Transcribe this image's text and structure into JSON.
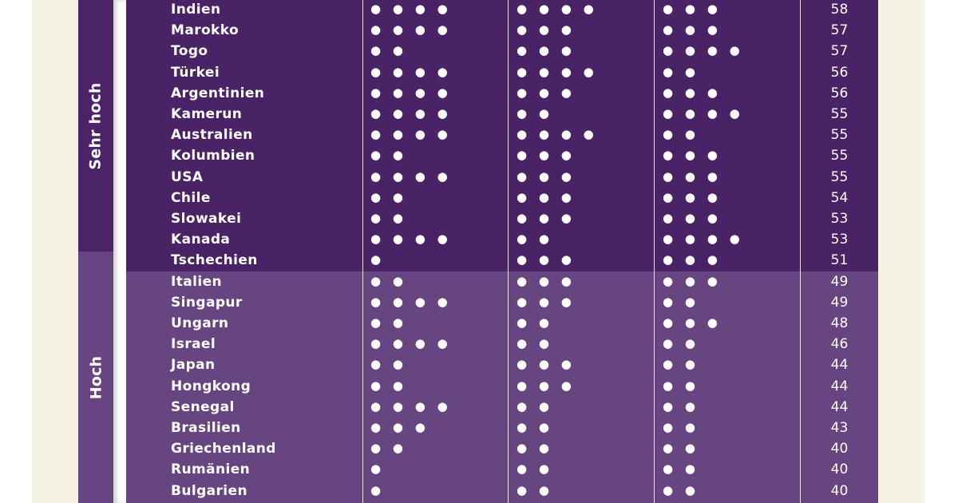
{
  "groups": {
    "very_high": "Sehr hoch",
    "high": "Hoch"
  },
  "rows": [
    {
      "country": "Indien",
      "d1": "● ● ● ●",
      "d2": "● ● ● ●",
      "d3": "● ● ●",
      "score": "58",
      "band": "very_high"
    },
    {
      "country": "Marokko",
      "d1": "● ● ● ●",
      "d2": "● ● ●",
      "d3": "● ● ●",
      "score": "57",
      "band": "very_high"
    },
    {
      "country": "Togo",
      "d1": "● ●",
      "d2": "● ● ●",
      "d3": "● ● ● ●",
      "score": "57",
      "band": "very_high"
    },
    {
      "country": "Türkei",
      "d1": "● ● ● ●",
      "d2": "● ● ● ●",
      "d3": "● ●",
      "score": "56",
      "band": "very_high"
    },
    {
      "country": "Argentinien",
      "d1": "● ● ● ●",
      "d2": "● ● ●",
      "d3": "● ● ●",
      "score": "56",
      "band": "very_high"
    },
    {
      "country": "Kamerun",
      "d1": "● ● ● ●",
      "d2": "● ●",
      "d3": "● ● ● ●",
      "score": "55",
      "band": "very_high"
    },
    {
      "country": "Australien",
      "d1": "● ● ● ●",
      "d2": "● ● ● ●",
      "d3": "● ●",
      "score": "55",
      "band": "very_high"
    },
    {
      "country": "Kolumbien",
      "d1": "● ●",
      "d2": "● ● ●",
      "d3": "● ● ●",
      "score": "55",
      "band": "very_high"
    },
    {
      "country": "USA",
      "d1": "● ● ● ●",
      "d2": "● ● ●",
      "d3": "● ● ●",
      "score": "55",
      "band": "very_high"
    },
    {
      "country": "Chile",
      "d1": "● ●",
      "d2": "● ● ●",
      "d3": "● ● ●",
      "score": "54",
      "band": "very_high"
    },
    {
      "country": "Slowakei",
      "d1": "● ●",
      "d2": "● ● ●",
      "d3": "● ● ●",
      "score": "53",
      "band": "very_high"
    },
    {
      "country": "Kanada",
      "d1": "● ● ● ●",
      "d2": "● ●",
      "d3": "● ● ● ●",
      "score": "53",
      "band": "very_high"
    },
    {
      "country": "Tschechien",
      "d1": "●",
      "d2": "● ● ●",
      "d3": "● ● ●",
      "score": "51",
      "band": "very_high"
    },
    {
      "country": "Italien",
      "d1": "● ●",
      "d2": "● ● ●",
      "d3": "● ● ●",
      "score": "49",
      "band": "high"
    },
    {
      "country": "Singapur",
      "d1": "● ● ● ●",
      "d2": "● ● ●",
      "d3": "● ●",
      "score": "49",
      "band": "high"
    },
    {
      "country": "Ungarn",
      "d1": "● ●",
      "d2": "● ●",
      "d3": "● ● ●",
      "score": "48",
      "band": "high"
    },
    {
      "country": "Israel",
      "d1": "● ● ● ●",
      "d2": "● ●",
      "d3": "● ●",
      "score": "46",
      "band": "high"
    },
    {
      "country": "Japan",
      "d1": "● ●",
      "d2": "● ● ●",
      "d3": "● ●",
      "score": "44",
      "band": "high"
    },
    {
      "country": "Hongkong",
      "d1": "● ●",
      "d2": "● ● ●",
      "d3": "● ●",
      "score": "44",
      "band": "high"
    },
    {
      "country": "Senegal",
      "d1": "● ● ● ●",
      "d2": "● ●",
      "d3": "● ●",
      "score": "44",
      "band": "high"
    },
    {
      "country": "Brasilien",
      "d1": "● ● ●",
      "d2": "● ●",
      "d3": "● ●",
      "score": "43",
      "band": "high"
    },
    {
      "country": "Griechenland",
      "d1": "● ●",
      "d2": "● ●",
      "d3": "● ●",
      "score": "40",
      "band": "high"
    },
    {
      "country": "Rumänien",
      "d1": "●",
      "d2": "● ●",
      "d3": "● ●",
      "score": "40",
      "band": "high"
    },
    {
      "country": "Bulgarien",
      "d1": "●",
      "d2": "● ●",
      "d3": "● ●",
      "score": "40",
      "band": "high"
    }
  ]
}
